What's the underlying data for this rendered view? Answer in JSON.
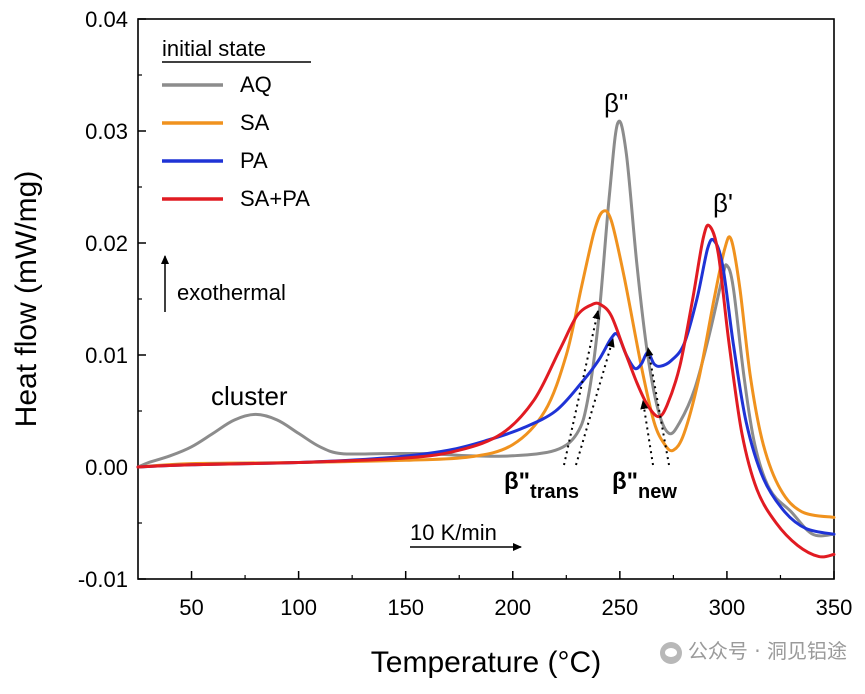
{
  "chart_data": {
    "type": "line",
    "xlabel": "Temperature (°C)",
    "ylabel": "Heat flow (mW/mg)",
    "xlim": [
      25,
      350
    ],
    "ylim": [
      -0.01,
      0.04
    ],
    "x_ticks": [
      "50",
      "100",
      "150",
      "200",
      "250",
      "300",
      "350"
    ],
    "y_ticks": [
      "-0.01",
      "0.00",
      "0.01",
      "0.02",
      "0.03",
      "0.04"
    ],
    "grid": false,
    "legend": {
      "title": "initial state",
      "position": "top-left"
    },
    "series": [
      {
        "name": "AQ",
        "color": "#8c8c8c",
        "points": [
          [
            25,
            0
          ],
          [
            30,
            0.0004
          ],
          [
            40,
            0.001
          ],
          [
            50,
            0.0018
          ],
          [
            60,
            0.003
          ],
          [
            70,
            0.0042
          ],
          [
            80,
            0.0047
          ],
          [
            90,
            0.0042
          ],
          [
            100,
            0.003
          ],
          [
            110,
            0.0018
          ],
          [
            120,
            0.0012
          ],
          [
            140,
            0.0012
          ],
          [
            160,
            0.0012
          ],
          [
            180,
            0.001
          ],
          [
            200,
            0.001
          ],
          [
            220,
            0.0015
          ],
          [
            230,
            0.003
          ],
          [
            235,
            0.006
          ],
          [
            240,
            0.013
          ],
          [
            245,
            0.024
          ],
          [
            249,
            0.0307
          ],
          [
            253,
            0.028
          ],
          [
            258,
            0.018
          ],
          [
            263,
            0.01
          ],
          [
            268,
            0.005
          ],
          [
            273,
            0.003
          ],
          [
            278,
            0.004
          ],
          [
            285,
            0.007
          ],
          [
            292,
            0.012
          ],
          [
            298,
            0.017
          ],
          [
            300,
            0.018
          ],
          [
            303,
            0.016
          ],
          [
            308,
            0.008
          ],
          [
            313,
            0.002
          ],
          [
            320,
            -0.002
          ],
          [
            330,
            -0.004
          ],
          [
            340,
            -0.006
          ],
          [
            350,
            -0.006
          ]
        ]
      },
      {
        "name": "SA",
        "color": "#f0921e",
        "points": [
          [
            25,
            0
          ],
          [
            50,
            0.0003
          ],
          [
            100,
            0.0004
          ],
          [
            150,
            0.0006
          ],
          [
            180,
            0.0009
          ],
          [
            200,
            0.002
          ],
          [
            215,
            0.005
          ],
          [
            225,
            0.01
          ],
          [
            232,
            0.016
          ],
          [
            238,
            0.021
          ],
          [
            242,
            0.0228
          ],
          [
            246,
            0.022
          ],
          [
            252,
            0.017
          ],
          [
            260,
            0.009
          ],
          [
            266,
            0.004
          ],
          [
            271,
            0.002
          ],
          [
            275,
            0.0015
          ],
          [
            280,
            0.003
          ],
          [
            287,
            0.008
          ],
          [
            294,
            0.015
          ],
          [
            299,
            0.0195
          ],
          [
            302,
            0.0203
          ],
          [
            306,
            0.016
          ],
          [
            311,
            0.008
          ],
          [
            317,
            0.002
          ],
          [
            325,
            -0.002
          ],
          [
            335,
            -0.004
          ],
          [
            350,
            -0.0045
          ]
        ]
      },
      {
        "name": "PA",
        "color": "#1f33d6",
        "points": [
          [
            25,
            0
          ],
          [
            50,
            0.0002
          ],
          [
            100,
            0.0004
          ],
          [
            140,
            0.0008
          ],
          [
            170,
            0.0015
          ],
          [
            190,
            0.0025
          ],
          [
            205,
            0.0035
          ],
          [
            220,
            0.005
          ],
          [
            232,
            0.0075
          ],
          [
            240,
            0.0095
          ],
          [
            246,
            0.0115
          ],
          [
            249,
            0.0118
          ],
          [
            253,
            0.01
          ],
          [
            257,
            0.0088
          ],
          [
            260,
            0.0092
          ],
          [
            263,
            0.0102
          ],
          [
            266,
            0.0092
          ],
          [
            269,
            0.009
          ],
          [
            274,
            0.0095
          ],
          [
            280,
            0.011
          ],
          [
            286,
            0.015
          ],
          [
            291,
            0.0195
          ],
          [
            294,
            0.0202
          ],
          [
            298,
            0.018
          ],
          [
            303,
            0.011
          ],
          [
            309,
            0.004
          ],
          [
            317,
            -0.001
          ],
          [
            327,
            -0.004
          ],
          [
            337,
            -0.0055
          ],
          [
            350,
            -0.006
          ]
        ]
      },
      {
        "name": "SA+PA",
        "color": "#e11b22",
        "points": [
          [
            25,
            0
          ],
          [
            50,
            0.0002
          ],
          [
            100,
            0.0004
          ],
          [
            150,
            0.0008
          ],
          [
            175,
            0.0015
          ],
          [
            195,
            0.003
          ],
          [
            210,
            0.006
          ],
          [
            222,
            0.0105
          ],
          [
            230,
            0.0135
          ],
          [
            237,
            0.0145
          ],
          [
            241,
            0.0145
          ],
          [
            246,
            0.0135
          ],
          [
            252,
            0.0105
          ],
          [
            258,
            0.0075
          ],
          [
            263,
            0.0055
          ],
          [
            268,
            0.0045
          ],
          [
            272,
            0.0055
          ],
          [
            278,
            0.009
          ],
          [
            284,
            0.015
          ],
          [
            289,
            0.0205
          ],
          [
            292,
            0.0215
          ],
          [
            296,
            0.019
          ],
          [
            301,
            0.011
          ],
          [
            307,
            0.003
          ],
          [
            314,
            -0.002
          ],
          [
            323,
            -0.005
          ],
          [
            333,
            -0.007
          ],
          [
            343,
            -0.008
          ],
          [
            350,
            -0.0078
          ]
        ]
      }
    ],
    "annotations": {
      "cluster": "cluster",
      "beta_dd": "β\"",
      "beta_d": "β'",
      "trans_main": "β\"",
      "trans_sub": "trans",
      "new_main": "β\"",
      "new_sub": "new",
      "exothermal": "exothermal",
      "rate": "10 K/min"
    }
  },
  "watermark": "公众号 · 洞见铝途"
}
